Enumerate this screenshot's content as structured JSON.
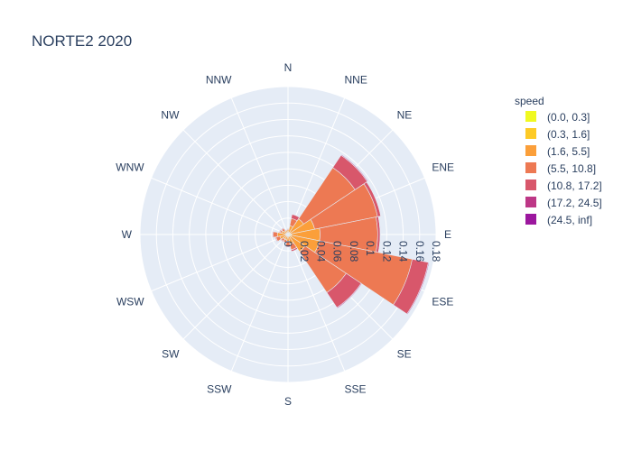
{
  "chart_data": {
    "type": "barpolar",
    "title": "NORTE2 2020",
    "directions": [
      "N",
      "NNE",
      "NE",
      "ENE",
      "E",
      "ESE",
      "SE",
      "SSE",
      "S",
      "SSW",
      "SW",
      "WSW",
      "W",
      "WNW",
      "NW",
      "NNW"
    ],
    "radial_axis": {
      "range": [
        0,
        0.18
      ],
      "tickvals": [
        0,
        0.02,
        0.04,
        0.06,
        0.08,
        0.1,
        0.12,
        0.14,
        0.16,
        0.18
      ],
      "ticklabels": [
        "0",
        "0.02",
        "0.04",
        "0.06",
        "0.08",
        "0.1",
        "0.12",
        "0.14",
        "0.16",
        "0.18"
      ]
    },
    "legend_title": "speed",
    "legend_position": "right",
    "series": [
      {
        "name": "(0.0, 0.3]",
        "color": "#f0f921",
        "values": [
          0,
          0,
          0,
          0,
          0,
          0,
          0,
          0,
          0,
          0,
          0,
          0,
          0,
          0,
          0,
          0
        ]
      },
      {
        "name": "(0.3, 1.6]",
        "color": "#fdca26",
        "values": [
          0.002,
          0.002,
          0.003,
          0.003,
          0.004,
          0.004,
          0.003,
          0.002,
          0.002,
          0.002,
          0.002,
          0.002,
          0.003,
          0.002,
          0.002,
          0.002
        ]
      },
      {
        "name": "(1.6, 5.5]",
        "color": "#fb9f3a",
        "values": [
          0.004,
          0.009,
          0.02,
          0.03,
          0.035,
          0.035,
          0.022,
          0.01,
          0.006,
          0.005,
          0.005,
          0.008,
          0.01,
          0.006,
          0.004,
          0.003
        ]
      },
      {
        "name": "(5.5, 10.8]",
        "color": "#ed7953",
        "values": [
          0.001,
          0.009,
          0.075,
          0.078,
          0.07,
          0.115,
          0.06,
          0.007,
          0.006,
          0.003,
          0.003,
          0.005,
          0.005,
          0.002,
          0.003,
          0.001
        ]
      },
      {
        "name": "(10.8, 17.2]",
        "color": "#d8576b",
        "values": [
          0.0005,
          0.005,
          0.018,
          0.004,
          0.003,
          0.02,
          0.022,
          0.002,
          0.001,
          0.0005,
          0.001,
          0.001,
          0.001,
          0.001,
          0.001,
          0.0005
        ]
      },
      {
        "name": "(17.2, 24.5]",
        "color": "#bd3786",
        "values": [
          0,
          0,
          0.001,
          0.0005,
          0.0005,
          0.001,
          0.001,
          0,
          0,
          0,
          0,
          0,
          0,
          0,
          0,
          0
        ]
      },
      {
        "name": "(24.5, inf]",
        "color": "#9c179e",
        "values": [
          0,
          0,
          0,
          0,
          0,
          0,
          0,
          0,
          0,
          0,
          0,
          0,
          0,
          0,
          0,
          0
        ]
      }
    ],
    "grid": true
  }
}
